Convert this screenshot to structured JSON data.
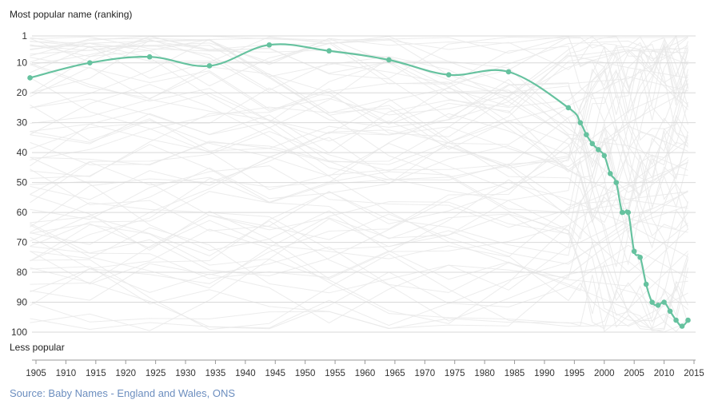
{
  "chart_data": {
    "type": "line",
    "ylabel_top": "Most popular name (ranking)",
    "ylabel_bottom": "Less popular",
    "y_inverted": true,
    "ylim": [
      1,
      100
    ],
    "xlim": [
      1905,
      2015
    ],
    "y_ticks": [
      1,
      10,
      20,
      30,
      40,
      50,
      60,
      70,
      80,
      90,
      100
    ],
    "x_ticks": [
      1905,
      1910,
      1915,
      1920,
      1925,
      1930,
      1935,
      1940,
      1945,
      1950,
      1955,
      1960,
      1965,
      1970,
      1975,
      1980,
      1985,
      1990,
      1995,
      2000,
      2005,
      2010,
      2015
    ],
    "grid": true,
    "series": [
      {
        "color": "#66c29f",
        "x": [
          1904,
          1914,
          1924,
          1934,
          1944,
          1954,
          1964,
          1974,
          1984,
          1994,
          1996,
          1997,
          1998,
          1999,
          2000,
          2001,
          2002,
          2003,
          2004,
          2005,
          2006,
          2007,
          2008,
          2009,
          2010,
          2011,
          2012,
          2013,
          2014
        ],
        "y": [
          15,
          10,
          8,
          11,
          4,
          6,
          9,
          14,
          13,
          25,
          30,
          34,
          37,
          39,
          41,
          47,
          50,
          60,
          60,
          73,
          75,
          84,
          90,
          91,
          90,
          93,
          96,
          98,
          96
        ]
      }
    ],
    "background_lines_color": "#e6e6e6"
  },
  "source": {
    "text": "Source: Baby Names - England and Wales, ONS",
    "color": "#6c8ebf"
  }
}
